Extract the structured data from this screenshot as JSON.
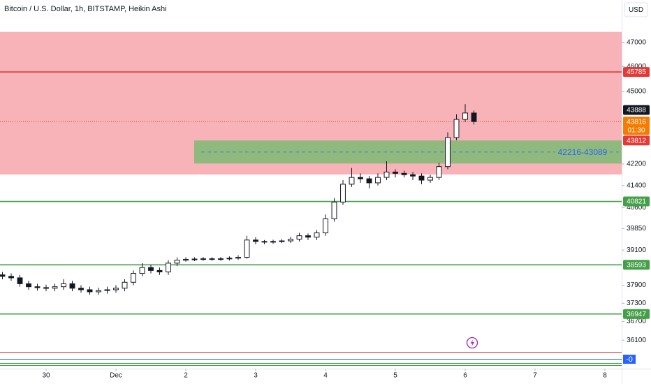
{
  "chart_data": {
    "type": "candlestick",
    "title": "Bitcoin / U.S. Dollar, 1h, BITSTAMP, Heikin Ashi",
    "currency": "USD",
    "log_scale": true,
    "grid": false,
    "xlim": [
      -0.66,
      8.24
    ],
    "xticks": [
      {
        "value": 0,
        "label": "30"
      },
      {
        "value": 1,
        "label": "Dec"
      },
      {
        "value": 2,
        "label": "2"
      },
      {
        "value": 3,
        "label": "3"
      },
      {
        "value": 4,
        "label": "4"
      },
      {
        "value": 5,
        "label": "5"
      },
      {
        "value": 6,
        "label": "6"
      },
      {
        "value": 7,
        "label": "7"
      },
      {
        "value": 8,
        "label": "8"
      }
    ],
    "ylim": [
      35200,
      48800
    ],
    "yticks": [
      47000,
      46000,
      45000,
      42200,
      41400,
      40600,
      39850,
      39100,
      37900,
      37300,
      36700,
      36100
    ],
    "up_color": "#ffffff",
    "down_color": "#131722",
    "x": [
      -0.625,
      -0.5,
      -0.375,
      -0.25,
      -0.125,
      0,
      0.125,
      0.25,
      0.375,
      0.5,
      0.625,
      0.75,
      0.875,
      1,
      1.125,
      1.25,
      1.375,
      1.5,
      1.625,
      1.75,
      1.875,
      2,
      2.125,
      2.25,
      2.375,
      2.5,
      2.625,
      2.75,
      2.875,
      3,
      3.125,
      3.25,
      3.375,
      3.5,
      3.625,
      3.75,
      3.875,
      4,
      4.125,
      4.25,
      4.375,
      4.5,
      4.625,
      4.75,
      4.875,
      5,
      5.125,
      5.25,
      5.375,
      5.5,
      5.625,
      5.75,
      5.875,
      6,
      6.125
    ],
    "open": [
      38250,
      38200,
      38150,
      37950,
      37850,
      37820,
      37800,
      37850,
      37950,
      37800,
      37750,
      37680,
      37720,
      37750,
      37800,
      38000,
      38300,
      38500,
      38400,
      38350,
      38650,
      38750,
      38780,
      38790,
      38800,
      38790,
      38800,
      38820,
      38850,
      39450,
      39400,
      39380,
      39400,
      39420,
      39480,
      39600,
      39550,
      39700,
      40200,
      40800,
      41450,
      41700,
      41650,
      41500,
      41700,
      41900,
      41850,
      41800,
      41750,
      41600,
      41700,
      42100,
      43200,
      43900,
      44150
    ],
    "high": [
      38350,
      38300,
      38250,
      38050,
      37950,
      37920,
      37950,
      38100,
      38050,
      37900,
      37850,
      37820,
      37850,
      37900,
      38100,
      38400,
      38650,
      38600,
      38500,
      38750,
      38850,
      38850,
      38850,
      38860,
      38860,
      38860,
      38880,
      38920,
      39600,
      39550,
      39450,
      39460,
      39480,
      39560,
      39700,
      39680,
      39800,
      40350,
      40950,
      41600,
      42050,
      41850,
      41750,
      41850,
      42300,
      42000,
      41950,
      41900,
      41850,
      41800,
      42250,
      43400,
      44100,
      44500,
      44250
    ],
    "low": [
      38100,
      38050,
      37850,
      37750,
      37720,
      37700,
      37700,
      37750,
      37700,
      37650,
      37580,
      37580,
      37620,
      37650,
      37700,
      37900,
      38200,
      38300,
      38250,
      38250,
      38550,
      38700,
      38720,
      38730,
      38730,
      38730,
      38740,
      38760,
      38800,
      39300,
      39300,
      39320,
      39340,
      39350,
      39400,
      39450,
      39450,
      39600,
      40100,
      40700,
      41350,
      41500,
      41300,
      41400,
      41600,
      41700,
      41700,
      41600,
      41450,
      41500,
      41600,
      42000,
      43100,
      43800,
      43700
    ],
    "close": [
      38200,
      38150,
      37950,
      37850,
      37820,
      37800,
      37850,
      37950,
      37800,
      37750,
      37680,
      37720,
      37750,
      37800,
      38000,
      38300,
      38500,
      38400,
      38350,
      38650,
      38750,
      38780,
      38790,
      38800,
      38790,
      38800,
      38820,
      38850,
      39450,
      39400,
      39380,
      39400,
      39420,
      39480,
      39600,
      39550,
      39700,
      40200,
      40800,
      41450,
      41700,
      41650,
      41500,
      41700,
      41900,
      41850,
      41800,
      41750,
      41600,
      41700,
      42100,
      43200,
      43900,
      44150,
      43816
    ],
    "zones": [
      {
        "low": 41810,
        "high": 47440,
        "x0": -0.66,
        "color": "#f7b3b8"
      },
      {
        "low": 42216,
        "high": 43089,
        "x0": 2.12,
        "color": "#8fb97d",
        "label": "42216-43089"
      }
    ],
    "levels": [
      {
        "value": 45785,
        "color": "#e53935"
      },
      {
        "value": 40821,
        "color": "#43a047"
      },
      {
        "value": 38593,
        "color": "#43a047"
      },
      {
        "value": 36947,
        "color": "#43a047"
      }
    ],
    "price_labels": [
      {
        "value": 43888,
        "color": "#131722"
      },
      {
        "value": 43816,
        "color": "#f57c00",
        "countdown": "01:30"
      },
      {
        "value": 43812,
        "color": "#e53935"
      }
    ],
    "indicator_label": "-0"
  }
}
